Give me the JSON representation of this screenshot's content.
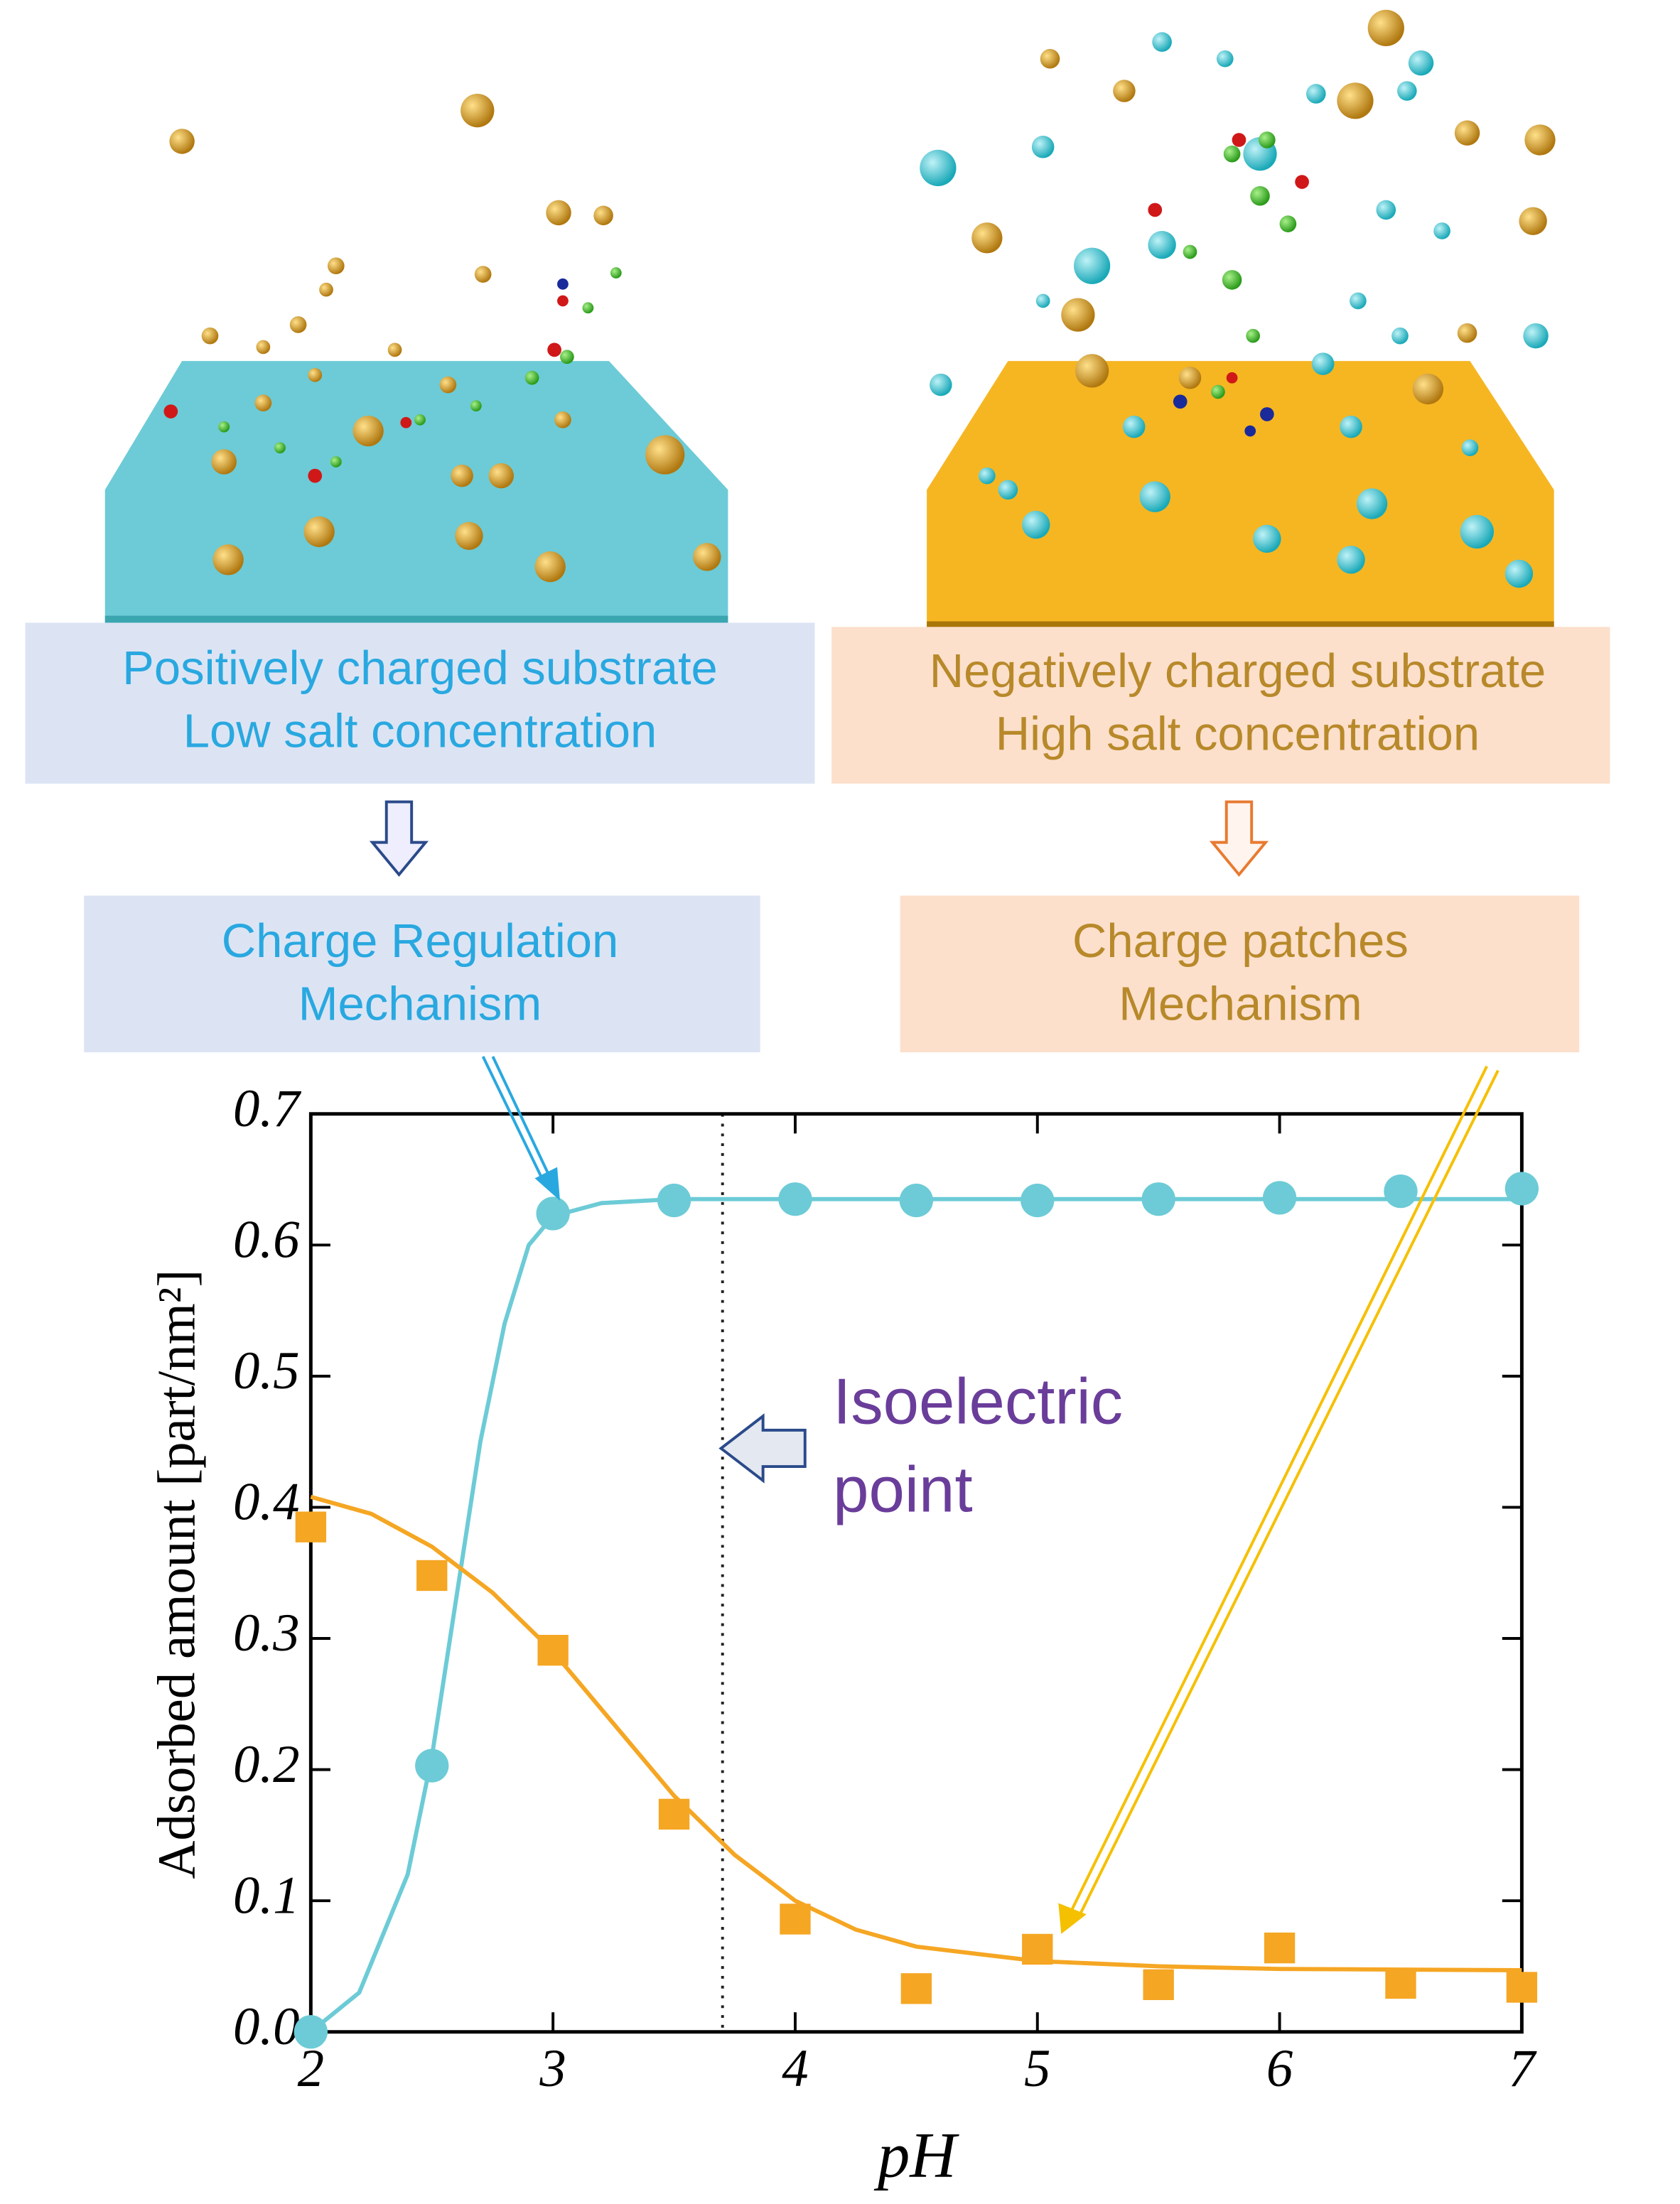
{
  "chart_data": {
    "type": "scatter",
    "panels": {
      "left_box": [
        "Positively charged substrate",
        "Low salt concentration"
      ],
      "right_box": [
        "Negatively charged substrate",
        "High salt concentration"
      ],
      "left_mechanism": [
        "Charge Regulation",
        "Mechanism"
      ],
      "right_mechanism": [
        "Charge patches",
        "Mechanism"
      ]
    },
    "annotation": [
      "Isoelectric",
      "point"
    ],
    "isoelectric_x": 3.7,
    "xlabel": "pH",
    "ylabel": "Adsorbed amount  [part/nm²]",
    "xlim": [
      2,
      7
    ],
    "xticks": [
      2,
      3,
      4,
      5,
      6,
      7
    ],
    "ylim": [
      0,
      0.7
    ],
    "yticks": [
      {
        "value": 0,
        "label": "0.0"
      },
      0.1,
      0.2,
      0.3,
      0.4,
      0.5,
      0.6,
      0.7
    ],
    "series": [
      {
        "color": "#6ccbd6",
        "marker": "circle",
        "x": [
          2,
          2.5,
          3,
          3.5,
          4,
          4.5,
          5,
          5.5,
          6,
          6.5,
          7
        ],
        "values": [
          0.0,
          0.203,
          0.624,
          0.634,
          0.635,
          0.634,
          0.634,
          0.635,
          0.636,
          0.641,
          0.643
        ]
      },
      {
        "color": "#f5a623",
        "marker": "square",
        "x": [
          2,
          2.5,
          3,
          3.5,
          4,
          4.5,
          5,
          5.5,
          6,
          6.5,
          7
        ],
        "values": [
          0.385,
          0.348,
          0.291,
          0.166,
          0.086,
          0.033,
          0.063,
          0.036,
          0.064,
          0.037,
          0.034
        ]
      },
      {
        "color": "#6ccbd6",
        "marker": "line",
        "x": [
          2,
          2.2,
          2.4,
          2.5,
          2.6,
          2.7,
          2.8,
          2.9,
          3,
          3.2,
          3.5,
          7
        ],
        "values": [
          0.0,
          0.03,
          0.12,
          0.21,
          0.33,
          0.45,
          0.54,
          0.6,
          0.622,
          0.632,
          0.635,
          0.635
        ]
      },
      {
        "color": "#f5a623",
        "marker": "line",
        "x": [
          2,
          2.25,
          2.5,
          2.75,
          3,
          3.25,
          3.5,
          3.75,
          4,
          4.25,
          4.5,
          5,
          5.5,
          6,
          7
        ],
        "values": [
          0.408,
          0.395,
          0.37,
          0.335,
          0.29,
          0.235,
          0.18,
          0.135,
          0.1,
          0.078,
          0.065,
          0.054,
          0.05,
          0.048,
          0.047
        ]
      }
    ]
  }
}
